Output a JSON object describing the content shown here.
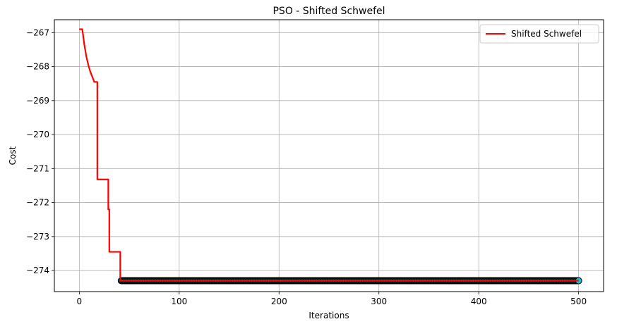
{
  "chart_data": {
    "type": "line",
    "title": "PSO - Shifted Schwefel",
    "xlabel": "Iterations",
    "ylabel": "Cost",
    "xlim": [
      -25,
      525
    ],
    "ylim": [
      -274.62,
      -266.62
    ],
    "xticks": [
      0,
      100,
      200,
      300,
      400,
      500
    ],
    "yticks": [
      -267,
      -268,
      -269,
      -270,
      -271,
      -272,
      -273,
      -274
    ],
    "grid": true,
    "legend_position": "top-right",
    "colors": {
      "line": "#ff0000",
      "marker_face": "#17becf",
      "marker_edge": "#000000",
      "grid": "#b0b0b0"
    },
    "series": [
      {
        "name": "Shifted Schwefel",
        "x": [
          0,
          3,
          5,
          7,
          9,
          11,
          13,
          15,
          17,
          18,
          18,
          29,
          29,
          30,
          30,
          38,
          38,
          41,
          41,
          42,
          500
        ],
        "y": [
          -266.9,
          -266.9,
          -267.35,
          -267.7,
          -267.95,
          -268.15,
          -268.3,
          -268.45,
          -268.45,
          -268.45,
          -271.32,
          -271.32,
          -272.2,
          -272.2,
          -273.45,
          -273.45,
          -273.45,
          -273.45,
          -274.3,
          -274.3,
          -274.3
        ]
      }
    ],
    "markers": {
      "x_start": 42,
      "x_end": 500,
      "y": -274.3
    }
  }
}
